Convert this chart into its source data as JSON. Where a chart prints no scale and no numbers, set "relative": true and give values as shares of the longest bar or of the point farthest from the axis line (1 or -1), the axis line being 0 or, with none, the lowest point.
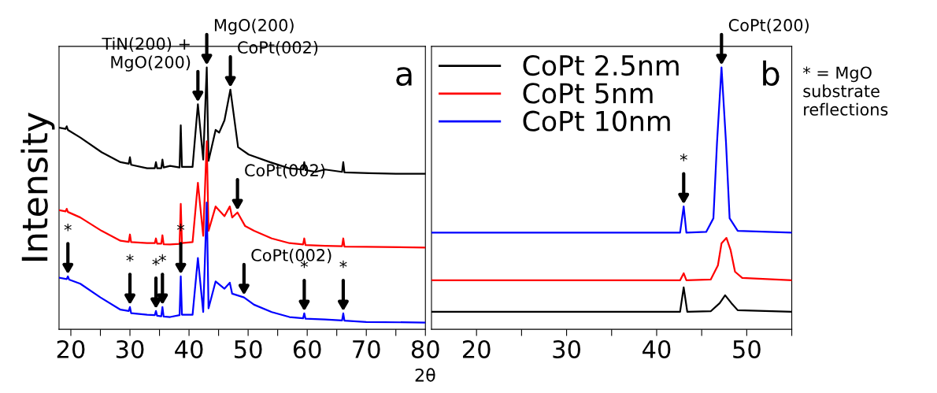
{
  "chart_data": [
    {
      "type": "line",
      "relative": true,
      "xlabel": "2θ",
      "ylabel": "Intensity",
      "xlim": [
        18,
        80
      ],
      "xticks": [
        20,
        {
          "value": 25,
          "label": null
        },
        30,
        {
          "value": 35,
          "label": null
        },
        40,
        {
          "value": 45,
          "label": null
        },
        50,
        {
          "value": 55,
          "label": null
        },
        60,
        {
          "value": 65,
          "label": null
        },
        70,
        {
          "value": 75,
          "label": null
        },
        80
      ],
      "grid": false,
      "legend": false,
      "line_style": "solid",
      "marker": "none",
      "series": [
        {
          "color": "#000000",
          "x": [
            18,
            19.1,
            19.3,
            19.5,
            21.6,
            25.2,
            28.4,
            29.8,
            30.0,
            30.2,
            32.9,
            34.2,
            34.4,
            34.6,
            35.3,
            35.5,
            35.7,
            36.8,
            38.4,
            38.6,
            38.8,
            40.6,
            41.5,
            42.4,
            43.0,
            43.3,
            44.5,
            45.1,
            46.0,
            47.0,
            48.3,
            50.1,
            53.7,
            56.9,
            59.3,
            59.5,
            59.7,
            61.4,
            63.0,
            65.9,
            66.1,
            66.3,
            70.5,
            75.0,
            80
          ],
          "values": [
            0.77,
            0.765,
            0.775,
            0.761,
            0.732,
            0.676,
            0.638,
            0.632,
            0.657,
            0.628,
            0.615,
            0.615,
            0.638,
            0.615,
            0.615,
            0.648,
            0.618,
            0.624,
            0.618,
            0.779,
            0.62,
            0.62,
            0.859,
            0.648,
            1.0,
            0.643,
            0.761,
            0.751,
            0.798,
            0.915,
            0.695,
            0.667,
            0.638,
            0.615,
            0.61,
            0.638,
            0.608,
            0.601,
            0.61,
            0.601,
            0.638,
            0.599,
            0.596,
            0.594,
            0.594
          ]
        },
        {
          "color": "#ff0000",
          "x": [
            18,
            19.1,
            19.3,
            19.5,
            21.6,
            25.2,
            28.4,
            29.8,
            30.0,
            30.2,
            32.9,
            34.2,
            34.4,
            34.6,
            35.3,
            35.5,
            35.7,
            36.8,
            38.4,
            38.6,
            38.8,
            40.6,
            41.5,
            42.4,
            43.0,
            43.3,
            44.5,
            46.0,
            46.9,
            47.3,
            48.2,
            49.5,
            51.0,
            54.0,
            57.0,
            59.3,
            59.5,
            59.7,
            63.0,
            65.9,
            66.1,
            66.3,
            70.0,
            80
          ],
          "values": [
            0.455,
            0.45,
            0.46,
            0.448,
            0.427,
            0.376,
            0.338,
            0.334,
            0.362,
            0.333,
            0.329,
            0.329,
            0.347,
            0.327,
            0.327,
            0.359,
            0.325,
            0.324,
            0.326,
            0.479,
            0.329,
            0.333,
            0.559,
            0.357,
            0.718,
            0.376,
            0.469,
            0.432,
            0.469,
            0.427,
            0.446,
            0.394,
            0.376,
            0.347,
            0.329,
            0.324,
            0.347,
            0.322,
            0.319,
            0.317,
            0.347,
            0.316,
            0.315,
            0.312
          ]
        },
        {
          "color": "#0000ff",
          "x": [
            18,
            19.3,
            19.5,
            19.7,
            21.6,
            25.0,
            28.4,
            29.8,
            30.0,
            30.2,
            32.9,
            34.2,
            34.4,
            34.6,
            35.3,
            35.5,
            35.7,
            36.8,
            38.4,
            38.6,
            38.8,
            40.6,
            41.5,
            42.4,
            43.0,
            43.3,
            44.5,
            46.0,
            46.9,
            47.3,
            49.3,
            51.0,
            54.0,
            57.0,
            59.3,
            59.5,
            59.7,
            63.0,
            65.9,
            66.1,
            66.3,
            70.0,
            80
          ],
          "values": [
            0.197,
            0.192,
            0.202,
            0.19,
            0.174,
            0.122,
            0.075,
            0.07,
            0.085,
            0.062,
            0.056,
            0.054,
            0.07,
            0.052,
            0.05,
            0.085,
            0.049,
            0.047,
            0.054,
            0.202,
            0.056,
            0.056,
            0.272,
            0.066,
            0.484,
            0.08,
            0.183,
            0.155,
            0.178,
            0.136,
            0.122,
            0.094,
            0.066,
            0.047,
            0.042,
            0.061,
            0.041,
            0.038,
            0.034,
            0.061,
            0.033,
            0.028,
            0.026
          ]
        }
      ],
      "annotations": [
        "a",
        {
          "text": "TiN(200) +\nMgO(200)",
          "x": 41.5,
          "y": 0.859
        },
        {
          "text": "MgO(200)",
          "x": 43.0,
          "y": 1.0
        },
        {
          "text": "CoPt(002)",
          "x": 47.0,
          "y": 0.915
        },
        {
          "text": "CoPt(002)",
          "x": 48.2,
          "y": 0.446
        },
        {
          "text": "CoPt(002)",
          "x": 49.3,
          "y": 0.122
        },
        {
          "text": "*",
          "x": 19.5,
          "y": 0.202
        },
        {
          "text": "*",
          "x": 30.0,
          "y": 0.085
        },
        {
          "text": "*",
          "x": 34.4,
          "y": 0.07
        },
        {
          "text": "*",
          "x": 35.5,
          "y": 0.085
        },
        {
          "text": "*",
          "x": 38.6,
          "y": 0.202
        },
        {
          "text": "*",
          "x": 59.5,
          "y": 0.061
        },
        {
          "text": "*",
          "x": 66.1,
          "y": 0.061
        }
      ]
    },
    {
      "type": "line",
      "relative": true,
      "xlim": [
        15,
        55
      ],
      "xticks": [
        20,
        {
          "value": 25,
          "label": null
        },
        30,
        {
          "value": 35,
          "label": null
        },
        40,
        {
          "value": 45,
          "label": null
        },
        50,
        {
          "value": 55,
          "label": null
        }
      ],
      "grid": false,
      "legend": "top left",
      "line_style": "solid",
      "marker": "none",
      "series": [
        {
          "name": "CoPt 2.5nm",
          "color": "#000000",
          "x": [
            15,
            42.6,
            43.0,
            43.4,
            46.0,
            47.0,
            47.6,
            48.3,
            49.0,
            55
          ],
          "values": [
            0.067,
            0.067,
            0.16,
            0.067,
            0.069,
            0.1,
            0.13,
            0.1,
            0.073,
            0.067
          ]
        },
        {
          "name": "CoPt 5nm",
          "color": "#ff0000",
          "x": [
            15,
            42.6,
            43.0,
            43.3,
            46.0,
            46.8,
            47.2,
            47.75,
            48.2,
            48.7,
            49.5,
            55
          ],
          "values": [
            0.187,
            0.187,
            0.214,
            0.187,
            0.19,
            0.244,
            0.328,
            0.349,
            0.304,
            0.22,
            0.196,
            0.187
          ]
        },
        {
          "name": "CoPt 10nm",
          "color": "#0000ff",
          "x": [
            15,
            42.6,
            43.0,
            43.3,
            45.5,
            46.3,
            46.7,
            47.2,
            47.7,
            48.1,
            49.0,
            55
          ],
          "values": [
            0.369,
            0.369,
            0.469,
            0.369,
            0.372,
            0.424,
            0.712,
            1.0,
            0.712,
            0.424,
            0.376,
            0.369
          ]
        }
      ],
      "annotations": [
        "b",
        "* = MgO\nsubstrate\nreflections",
        {
          "text": "*",
          "x": 43.0,
          "y": 0.469
        },
        {
          "text": "CoPt(200)",
          "x": 47.2,
          "y": 1.0
        }
      ]
    }
  ]
}
